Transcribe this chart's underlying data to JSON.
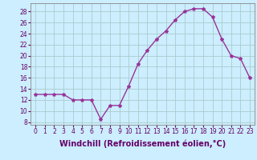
{
  "x": [
    0,
    1,
    2,
    3,
    4,
    5,
    6,
    7,
    8,
    9,
    10,
    11,
    12,
    13,
    14,
    15,
    16,
    17,
    18,
    19,
    20,
    21,
    22,
    23
  ],
  "y": [
    13,
    13,
    13,
    13,
    12,
    12,
    12,
    8.5,
    11,
    11,
    14.5,
    18.5,
    21,
    23,
    24.5,
    26.5,
    28,
    28.5,
    28.5,
    27,
    23,
    20,
    19.5,
    16
  ],
  "line_color": "#993399",
  "marker": "*",
  "marker_size": 3,
  "bg_color": "#cceeff",
  "grid_color": "#aacccc",
  "xlabel": "Windchill (Refroidissement éolien,°C)",
  "xlabel_fontsize": 7,
  "ylabel_ticks": [
    8,
    10,
    12,
    14,
    16,
    18,
    20,
    22,
    24,
    26,
    28
  ],
  "xlim": [
    -0.5,
    23.5
  ],
  "ylim": [
    7.5,
    29.5
  ],
  "xtick_labels": [
    "0",
    "1",
    "2",
    "3",
    "4",
    "5",
    "6",
    "7",
    "8",
    "9",
    "10",
    "11",
    "12",
    "13",
    "14",
    "15",
    "16",
    "17",
    "18",
    "19",
    "20",
    "21",
    "22",
    "23"
  ],
  "tick_fontsize": 5.5,
  "label_color": "#660066",
  "fig_width": 3.2,
  "fig_height": 2.0,
  "dpi": 100
}
